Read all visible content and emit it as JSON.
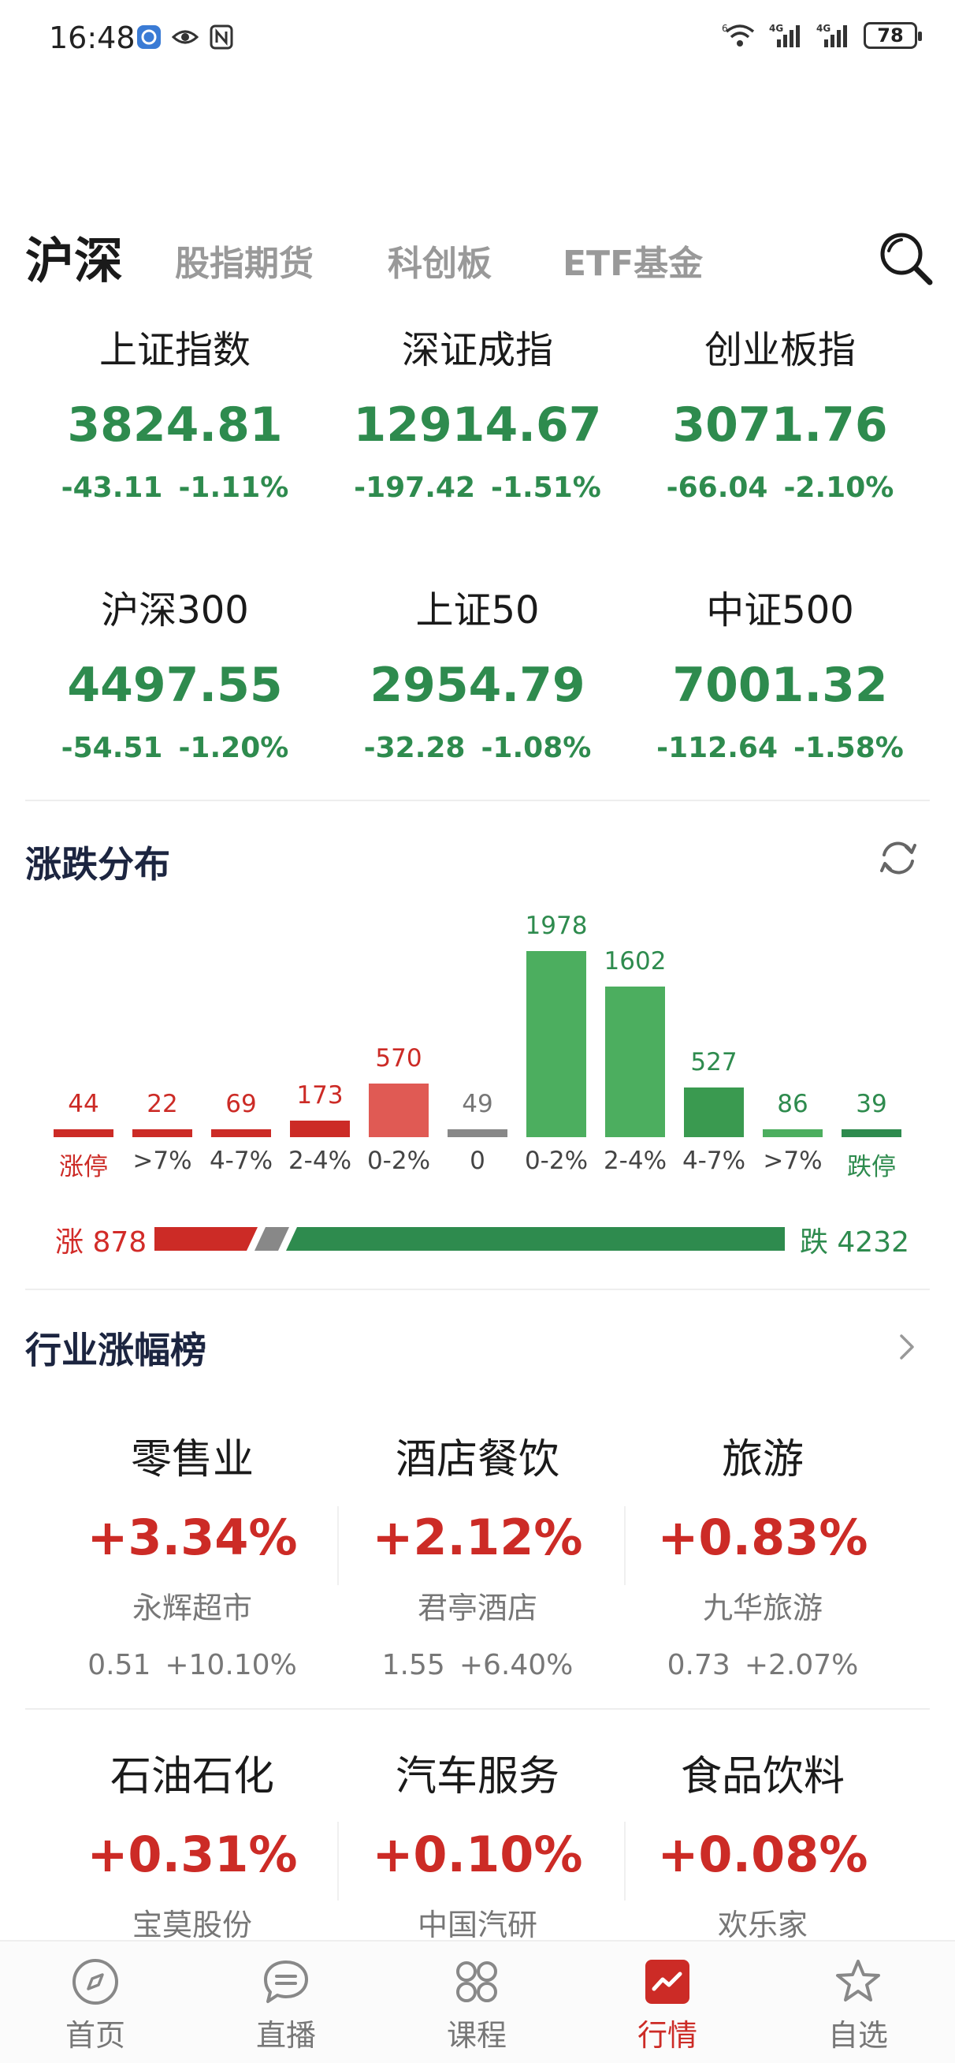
{
  "status_bar": {
    "time": "16:48",
    "battery": "78",
    "net1": "4G",
    "net2": "4G",
    "wifi_badge": "6"
  },
  "tabs": [
    {
      "label": "沪深",
      "active": true
    },
    {
      "label": "股指期货",
      "active": false
    },
    {
      "label": "科创板",
      "active": false
    },
    {
      "label": "ETF基金",
      "active": false
    }
  ],
  "indices": [
    {
      "name": "上证指数",
      "value": "3824.81",
      "change": "-43.11",
      "pct": "-1.11%"
    },
    {
      "name": "深证成指",
      "value": "12914.67",
      "change": "-197.42",
      "pct": "-1.51%"
    },
    {
      "name": "创业板指",
      "value": "3071.76",
      "change": "-66.04",
      "pct": "-2.10%"
    },
    {
      "name": "沪深300",
      "value": "4497.55",
      "change": "-54.51",
      "pct": "-1.20%"
    },
    {
      "name": "上证50",
      "value": "2954.79",
      "change": "-32.28",
      "pct": "-1.08%"
    },
    {
      "name": "中证500",
      "value": "7001.32",
      "change": "-112.64",
      "pct": "-1.58%"
    }
  ],
  "distribution": {
    "title": "涨跌分布",
    "icon": "refresh-icon",
    "colors": {
      "up_strong": "#cc2b26",
      "up_soft": "#e05a54",
      "flat": "#888888",
      "down": "#4cae5f",
      "down_strong": "#3a9a50",
      "down_edge": "#2e8b4e"
    }
  },
  "chart_data": {
    "type": "bar",
    "categories": [
      "涨停",
      ">7%",
      "4-7%",
      "2-4%",
      "0-2%",
      "0",
      "0-2%",
      "2-4%",
      "4-7%",
      ">7%",
      "跌停"
    ],
    "values": [
      44,
      22,
      69,
      173,
      570,
      49,
      1978,
      1602,
      527,
      86,
      39
    ],
    "direction": [
      "up",
      "up",
      "up",
      "up",
      "up",
      "flat",
      "down",
      "down",
      "down",
      "down",
      "down"
    ],
    "title": "",
    "xlabel": "",
    "ylabel": "",
    "ylim": [
      0,
      1978
    ],
    "grid": false,
    "legend": "none"
  },
  "ratio": {
    "up_label": "涨 878",
    "down_label": "跌 4232",
    "up": 878,
    "flat": 49,
    "down": 4232
  },
  "industry": {
    "title": "行业涨幅榜",
    "icon": "chevron-right-icon",
    "items": [
      {
        "name": "零售业",
        "pct": "+3.34%",
        "stock": "永辉超市",
        "price": "0.51",
        "stock_pct": "+10.10%"
      },
      {
        "name": "酒店餐饮",
        "pct": "+2.12%",
        "stock": "君亭酒店",
        "price": "1.55",
        "stock_pct": "+6.40%"
      },
      {
        "name": "旅游",
        "pct": "+0.83%",
        "stock": "九华旅游",
        "price": "0.73",
        "stock_pct": "+2.07%"
      },
      {
        "name": "石油石化",
        "pct": "+0.31%",
        "stock": "宝莫股份"
      },
      {
        "name": "汽车服务",
        "pct": "+0.10%",
        "stock": "中国汽研"
      },
      {
        "name": "食品饮料",
        "pct": "+0.08%",
        "stock": "欢乐家"
      }
    ]
  },
  "bottom_nav": [
    {
      "label": "首页",
      "icon": "compass-icon",
      "active": false
    },
    {
      "label": "直播",
      "icon": "chat-bubble-icon",
      "active": false
    },
    {
      "label": "课程",
      "icon": "grid-icon",
      "active": false
    },
    {
      "label": "行情",
      "icon": "chart-icon",
      "active": true
    },
    {
      "label": "自选",
      "icon": "star-icon",
      "active": false
    }
  ]
}
